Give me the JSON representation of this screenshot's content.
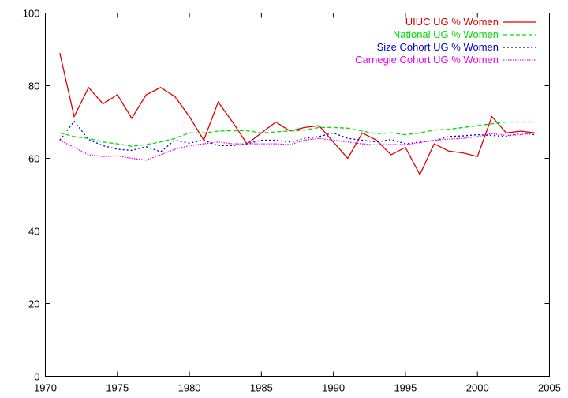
{
  "chart_data": {
    "type": "line",
    "title": "",
    "xlabel": "",
    "ylabel": "",
    "xlim": [
      1970,
      2005
    ],
    "ylim": [
      0,
      100
    ],
    "xticks": [
      1970,
      1975,
      1980,
      1985,
      1990,
      1995,
      2000,
      2005
    ],
    "yticks": [
      0,
      20,
      40,
      60,
      80,
      100
    ],
    "grid": false,
    "legend_position": "top-right",
    "x": [
      1971,
      1972,
      1973,
      1974,
      1975,
      1976,
      1977,
      1978,
      1979,
      1980,
      1981,
      1982,
      1983,
      1984,
      1985,
      1986,
      1987,
      1988,
      1989,
      1990,
      1991,
      1992,
      1993,
      1994,
      1995,
      1996,
      1997,
      1998,
      1999,
      2000,
      2001,
      2002,
      2003,
      2004
    ],
    "series": [
      {
        "name": "UIUC UG % Women",
        "color": "#dd0000",
        "dash": "solid",
        "values": [
          89,
          71.5,
          79.5,
          75,
          77.5,
          71,
          77.5,
          79.5,
          77,
          71.5,
          65,
          75.5,
          70,
          64,
          67,
          70,
          67.5,
          68.5,
          69,
          64.5,
          60,
          67,
          65,
          61,
          63,
          55.5,
          64,
          62,
          61.5,
          60.5,
          71.5,
          67,
          67.5,
          67
        ]
      },
      {
        "name": "National UG % Women",
        "color": "#00dd00",
        "dash": "dashed",
        "values": [
          67,
          66,
          65.5,
          64.5,
          64,
          63.3,
          63.8,
          64.5,
          65.5,
          67,
          67,
          67.5,
          67.6,
          67.6,
          67,
          67.3,
          67.5,
          67.8,
          68.5,
          68.5,
          68.3,
          67.5,
          66.8,
          67,
          66.5,
          67,
          67.8,
          68,
          68.5,
          69,
          69.5,
          70,
          70,
          70
        ]
      },
      {
        "name": "Size Cohort UG % Women",
        "color": "#0000cc",
        "dash": "dotted",
        "values": [
          65,
          70.2,
          65.2,
          63.5,
          62.5,
          62.2,
          63.2,
          61.8,
          65,
          64.2,
          65,
          63.5,
          63.5,
          64,
          65,
          65,
          64.5,
          65.5,
          66,
          67,
          65.5,
          65,
          64.5,
          65.2,
          64,
          64.5,
          64.8,
          66,
          66.2,
          66.5,
          66.3,
          66,
          67,
          66.5
        ]
      },
      {
        "name": "Carnegie Cohort UG % Women",
        "color": "#ee00ee",
        "dash": "dotted-fine",
        "values": [
          65,
          63,
          61,
          60.5,
          60.7,
          60,
          59.5,
          61,
          62.5,
          63.5,
          64,
          64.5,
          64,
          64,
          64,
          64,
          63.8,
          65,
          65.5,
          65,
          64.5,
          64,
          63.7,
          63.8,
          63.8,
          64.3,
          65,
          65.3,
          65.5,
          66,
          66.8,
          66.3,
          66.5,
          67
        ]
      }
    ]
  }
}
